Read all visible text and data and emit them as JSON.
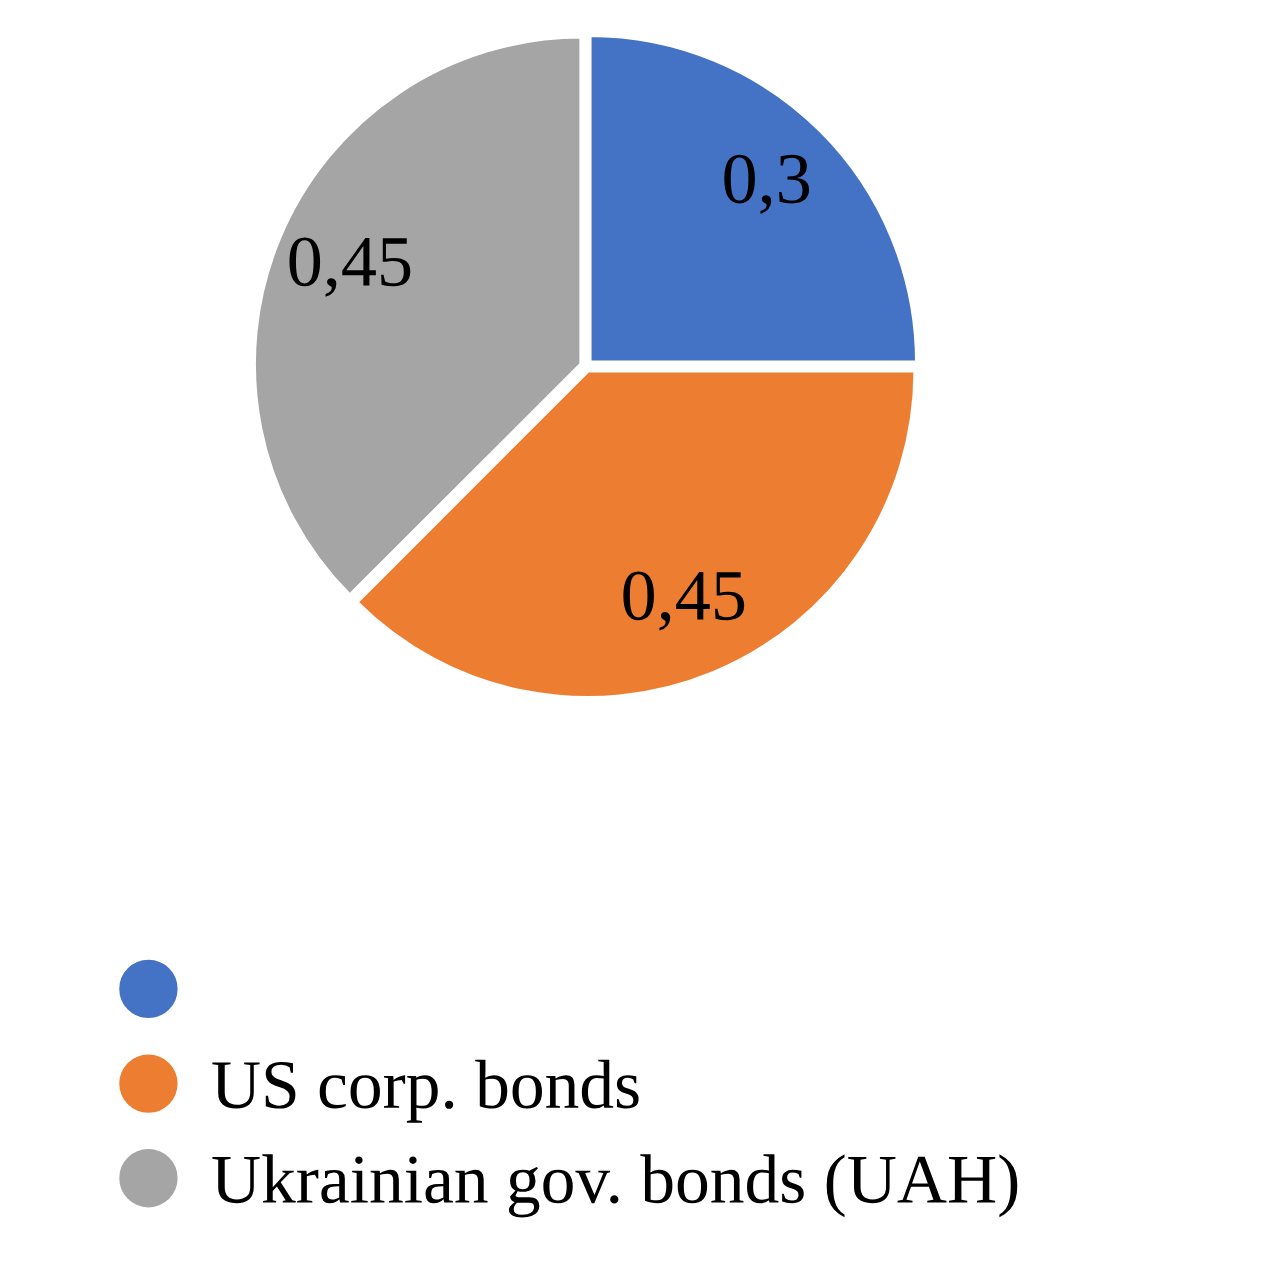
{
  "chart_data": {
    "type": "pie",
    "categories": [
      null,
      "US corp. bonds",
      "Ukrainian gov. bonds (UAH)"
    ],
    "values": [
      0.3,
      0.45,
      0.45
    ],
    "colors": [
      "#4472c4",
      "#ed7d31",
      "#a5a5a5"
    ],
    "value_labels": [
      "0,3",
      "0,45",
      "0,45"
    ],
    "legend": "bottom"
  }
}
